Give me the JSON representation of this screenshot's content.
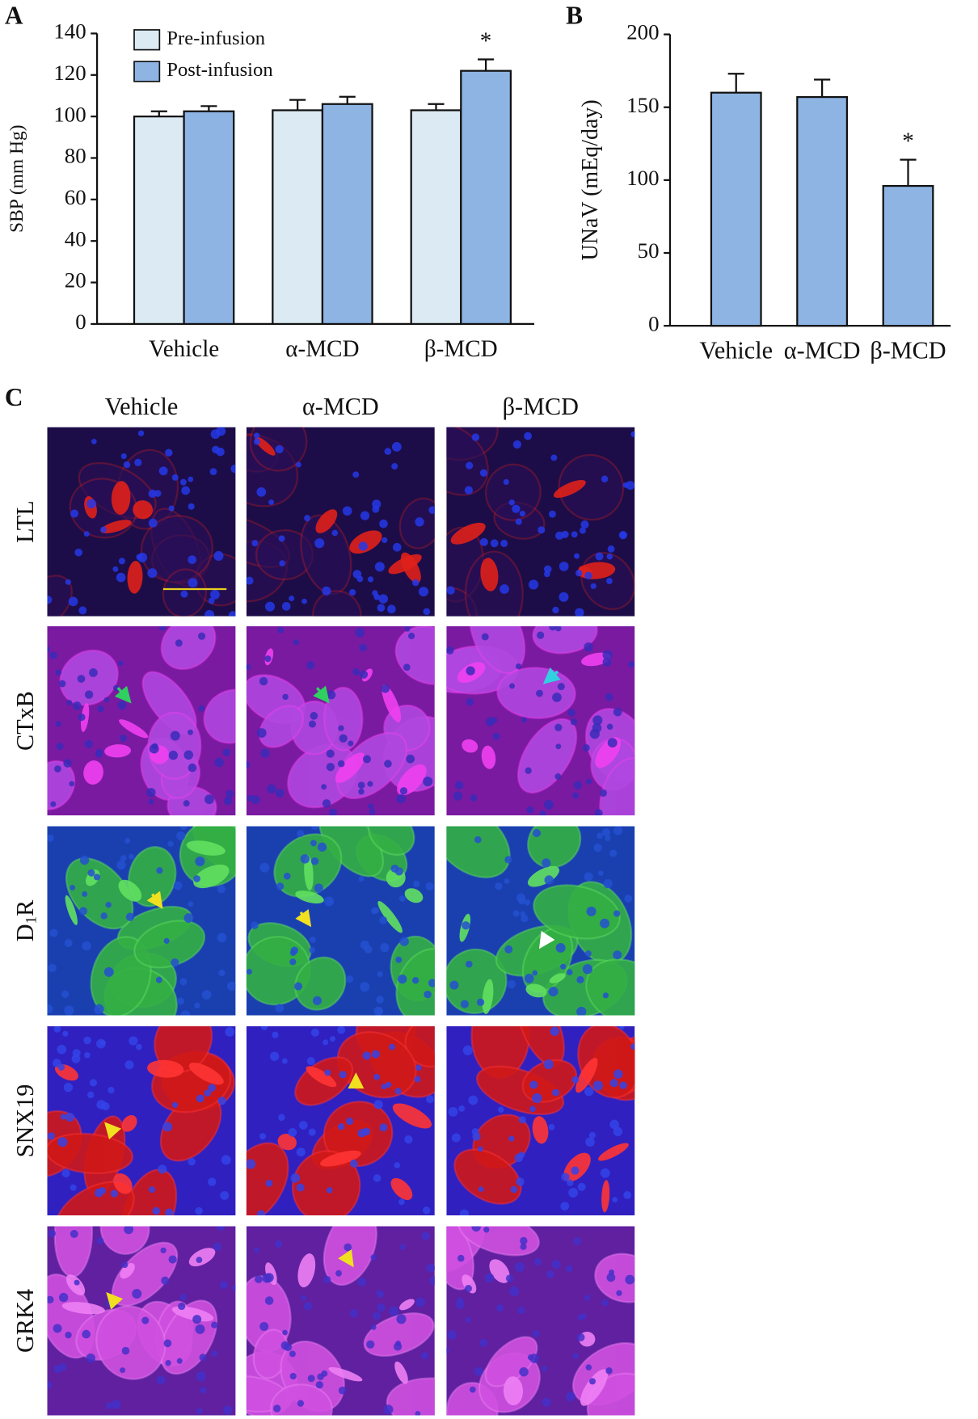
{
  "chart_data": [
    {
      "type": "bar",
      "panel_label": "A",
      "ylabel": "SBP (mm Hg)",
      "categories": [
        "Vehicle",
        "α-MCD",
        "β-MCD"
      ],
      "series": [
        {
          "name": "Pre-infusion",
          "color": "#dbeaf3",
          "values": [
            100,
            103,
            103
          ],
          "errors": [
            2.5,
            5,
            3
          ],
          "markers": [
            null,
            null,
            null
          ]
        },
        {
          "name": "Post-infusion",
          "color": "#8eb4e3",
          "values": [
            102.5,
            106,
            122
          ],
          "errors": [
            2.5,
            3.5,
            5.5
          ],
          "markers": [
            null,
            null,
            "*"
          ]
        }
      ],
      "ylim": [
        0,
        140
      ],
      "yticks": [
        0,
        20,
        40,
        60,
        80,
        100,
        120,
        140
      ]
    },
    {
      "type": "bar",
      "panel_label": "B",
      "ylabel": "UNaV (mEq/day)",
      "categories": [
        "Vehicle",
        "α-MCD",
        "β-MCD"
      ],
      "series": [
        {
          "color": "#8eb4e3",
          "values": [
            160,
            157,
            96
          ],
          "errors": [
            13,
            12,
            18
          ],
          "markers": [
            null,
            null,
            "*"
          ]
        }
      ],
      "ylim": [
        0,
        200
      ],
      "yticks": [
        0,
        50,
        100,
        150,
        200
      ]
    }
  ],
  "panel_c": {
    "label": "C",
    "columns": [
      "Vehicle",
      "α-MCD",
      "β-MCD"
    ],
    "rows": [
      [
        "LTL"
      ],
      [
        "CTxB"
      ],
      [
        "D",
        "1",
        "R"
      ],
      [
        "SNX19"
      ],
      [
        "GRK4"
      ]
    ]
  }
}
